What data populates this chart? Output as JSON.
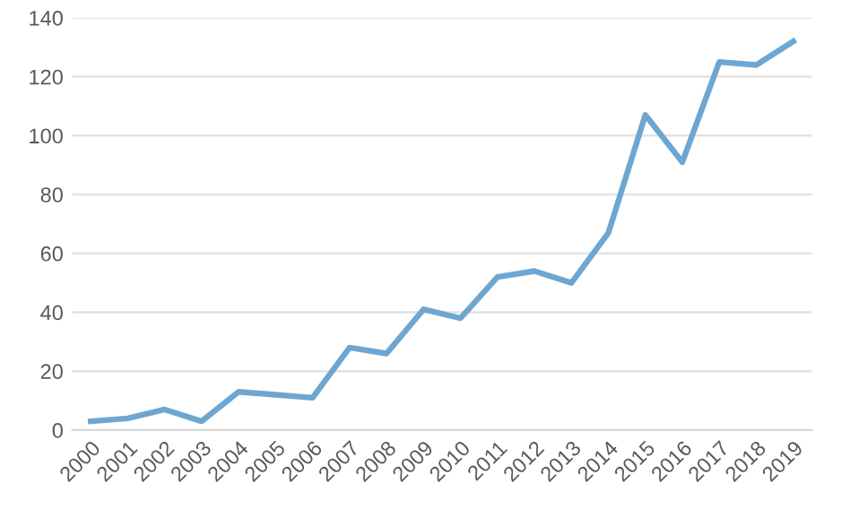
{
  "chart_data": {
    "type": "line",
    "categories": [
      "2000",
      "2001",
      "2002",
      "2003",
      "2004",
      "2005",
      "2006",
      "2007",
      "2008",
      "2009",
      "2010",
      "2011",
      "2012",
      "2013",
      "2014",
      "2015",
      "2016",
      "2017",
      "2018",
      "2019"
    ],
    "series": [
      {
        "color": "#6ea6d2",
        "values": [
          3,
          4,
          7,
          3,
          13,
          12,
          11,
          28,
          26,
          41,
          38,
          52,
          54,
          50,
          67,
          107,
          91,
          125,
          124,
          132
        ]
      }
    ],
    "ylim": [
      0,
      140
    ],
    "yticks": [
      0,
      20,
      40,
      60,
      80,
      100,
      120,
      140
    ],
    "grid": "y",
    "legend": false,
    "marker": "none",
    "line_style": "solid"
  }
}
